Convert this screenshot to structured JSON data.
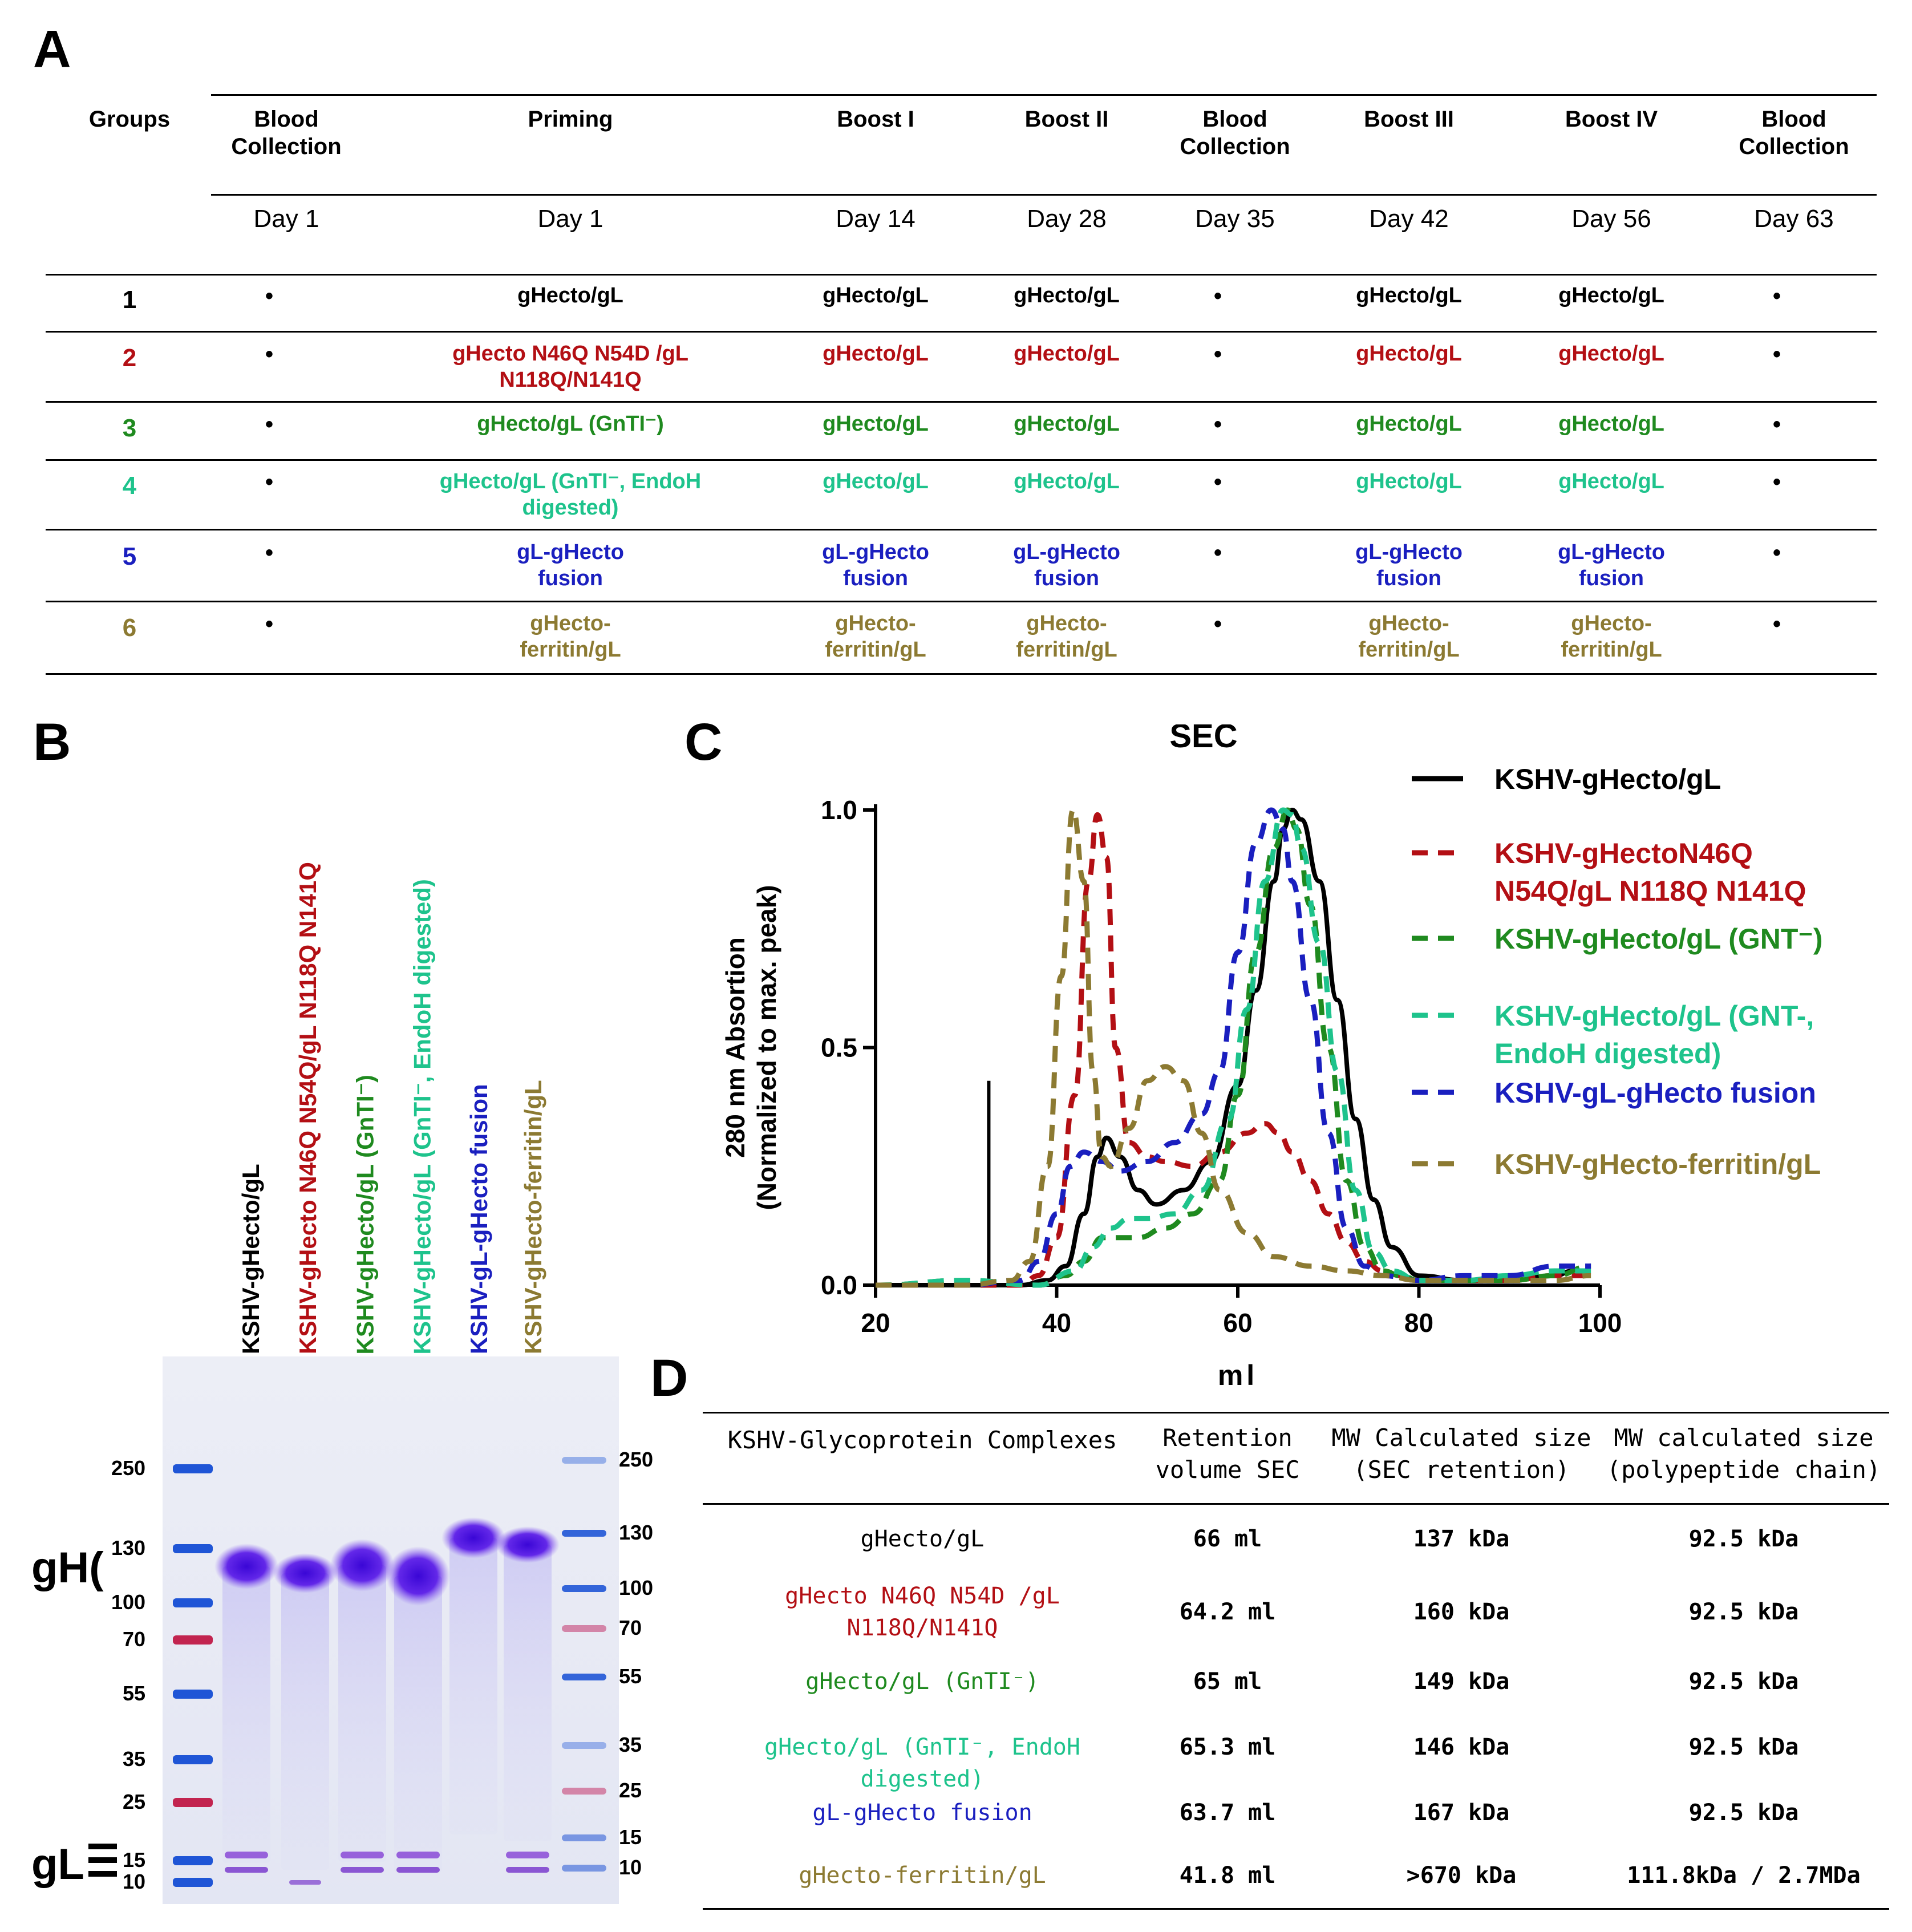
{
  "panel_letters": {
    "a": "A",
    "b": "B",
    "c": "C",
    "d": "D"
  },
  "colors": {
    "black": "#000000",
    "red": "#b30f14",
    "green": "#1f8a1f",
    "teal": "#1ec38c",
    "blue": "#1a1fbf",
    "olive": "#8c7a32",
    "gel_purple": "#6a2bd9",
    "ladder_blue": "#1f55d6",
    "ladder_red": "#c2244f"
  },
  "table_a": {
    "headers": [
      "Groups",
      "Blood\nCollection",
      "Priming",
      "Boost I",
      "Boost II",
      "Blood\nCollection",
      "Boost III",
      "Boost IV",
      "Blood\nCollection"
    ],
    "days": [
      "",
      "Day 1",
      "Day 1",
      "Day 14",
      "Day 28",
      "Day 35",
      "Day 42",
      "Day 56",
      "Day 63"
    ],
    "rows": [
      {
        "group": "1",
        "color": "#000000",
        "cells": [
          "•",
          "gHecto/gL",
          "gHecto/gL",
          "gHecto/gL",
          "•",
          "gHecto/gL",
          "gHecto/gL",
          "•"
        ]
      },
      {
        "group": "2",
        "color": "#b30f14",
        "cells": [
          "•",
          "gHecto N46Q N54D /gL\nN118Q/N141Q",
          "gHecto/gL",
          "gHecto/gL",
          "•",
          "gHecto/gL",
          "gHecto/gL",
          "•"
        ]
      },
      {
        "group": "3",
        "color": "#1f8a1f",
        "cells": [
          "•",
          "gHecto/gL (GnTI⁻)",
          "gHecto/gL",
          "gHecto/gL",
          "•",
          "gHecto/gL",
          "gHecto/gL",
          "•"
        ]
      },
      {
        "group": "4",
        "color": "#1ec38c",
        "cells": [
          "•",
          "gHecto/gL (GnTI⁻, EndoH\ndigested)",
          "gHecto/gL",
          "gHecto/gL",
          "•",
          "gHecto/gL",
          "gHecto/gL",
          "•"
        ]
      },
      {
        "group": "5",
        "color": "#1a1fbf",
        "cells": [
          "•",
          "gL-gHecto\nfusion",
          "gL-gHecto\nfusion",
          "gL-gHecto\nfusion",
          "•",
          "gL-gHecto\nfusion",
          "gL-gHecto\nfusion",
          "•"
        ]
      },
      {
        "group": "6",
        "color": "#8c7a32",
        "cells": [
          "•",
          "gHecto-\nferritin/gL",
          "gHecto-\nferritin/gL",
          "gHecto-\nferritin/gL",
          "•",
          "gHecto-\nferritin/gL",
          "gHecto-\nferritin/gL",
          "•"
        ]
      }
    ]
  },
  "gel": {
    "lanes": [
      {
        "label": "KSHV-gHecto/gL",
        "color": "#000000"
      },
      {
        "label": "KSHV-gHecto N46Q N54Q/gL N118Q N141Q",
        "color": "#b30f14"
      },
      {
        "label": "KSHV-gHecto/gL (GnTI⁻)",
        "color": "#1f8a1f"
      },
      {
        "label": "KSHV-gHecto/gL (GnTI⁻, EndoH digested)",
        "color": "#1ec38c"
      },
      {
        "label": "KSHV-gL-gHecto fusion",
        "color": "#1a1fbf"
      },
      {
        "label": "KSHV-gHecto-ferritin/gL",
        "color": "#8c7a32"
      }
    ],
    "left_markers": [
      "250",
      "130",
      "100",
      "70",
      "55",
      "35",
      "25",
      "15",
      "10"
    ],
    "right_markers": [
      "250",
      "130",
      "100",
      "70",
      "55",
      "35",
      "25",
      "15",
      "10"
    ],
    "gh_label": "gH(",
    "gl_label": "gL"
  },
  "chart_data": {
    "type": "line",
    "title": "SEC",
    "xlabel": "ml",
    "ylabel": "280 nm Absortion\n(Normalized to max. peak)",
    "xlim": [
      20,
      100
    ],
    "ylim": [
      0,
      1.0
    ],
    "xticks": [
      "20",
      "40",
      "60",
      "80",
      "100"
    ],
    "yticks": [
      "0.0",
      "0.5",
      "1.0"
    ],
    "marker_line_x": 32.5,
    "marker_line_top": 0.43,
    "series": [
      {
        "name": "KSHV-gHecto/gL",
        "color": "#000000",
        "dash": false,
        "x": [
          20,
          30,
          36,
          39,
          41,
          43,
          44.5,
          45.5,
          47,
          49,
          51,
          54,
          57,
          60,
          62,
          64,
          65,
          66,
          67,
          69,
          71,
          73,
          75,
          77,
          80,
          85,
          90,
          95,
          97
        ],
        "y": [
          0,
          0,
          0,
          0.01,
          0.04,
          0.15,
          0.27,
          0.31,
          0.27,
          0.2,
          0.17,
          0.2,
          0.26,
          0.42,
          0.62,
          0.85,
          0.96,
          1.0,
          0.98,
          0.85,
          0.6,
          0.35,
          0.18,
          0.08,
          0.02,
          0.01,
          0.01,
          0.02,
          0.03
        ]
      },
      {
        "name": "KSHV-gHectoN46Q\nN54Q/gL N118Q N141Q",
        "color": "#b30f14",
        "dash": true,
        "x": [
          20,
          30,
          36,
          38,
          40,
          42,
          43.5,
          44.5,
          45.5,
          46.5,
          48,
          50,
          52,
          55,
          58,
          61,
          63,
          64.5,
          66,
          68,
          70,
          72,
          74,
          76,
          78,
          80,
          85,
          90,
          95,
          99
        ],
        "y": [
          0,
          0,
          0,
          0.02,
          0.1,
          0.4,
          0.85,
          0.99,
          0.9,
          0.5,
          0.3,
          0.27,
          0.26,
          0.25,
          0.28,
          0.32,
          0.34,
          0.32,
          0.28,
          0.22,
          0.15,
          0.09,
          0.05,
          0.03,
          0.02,
          0.01,
          0.01,
          0.01,
          0.02,
          0.02
        ]
      },
      {
        "name": "KSHV-gHecto/gL (GNT⁻)",
        "color": "#1f8a1f",
        "dash": true,
        "x": [
          20,
          30,
          38,
          41,
          43,
          45,
          47,
          49,
          52,
          55,
          58,
          60,
          62,
          64,
          65.5,
          66.5,
          68,
          70,
          72,
          74,
          76,
          78,
          80,
          85,
          90,
          95,
          99
        ],
        "y": [
          0,
          0.01,
          0,
          0.02,
          0.05,
          0.1,
          0.1,
          0.1,
          0.12,
          0.15,
          0.22,
          0.4,
          0.7,
          0.92,
          1.0,
          0.96,
          0.8,
          0.5,
          0.22,
          0.08,
          0.03,
          0.02,
          0.01,
          0.01,
          0.01,
          0.02,
          0.04
        ]
      },
      {
        "name": "KSHV-gHecto/gL (GNT-,\nEndoH digested)",
        "color": "#1ec38c",
        "dash": true,
        "x": [
          20,
          30,
          38,
          42,
          44,
          46,
          48,
          50,
          53,
          56,
          59,
          61,
          63,
          65,
          66,
          67,
          69,
          71,
          73,
          75,
          77,
          80,
          85,
          90,
          95,
          99
        ],
        "y": [
          0,
          0.01,
          0,
          0.03,
          0.08,
          0.12,
          0.14,
          0.14,
          0.15,
          0.2,
          0.35,
          0.58,
          0.85,
          1.0,
          0.99,
          0.92,
          0.72,
          0.45,
          0.2,
          0.07,
          0.03,
          0.01,
          0.01,
          0.02,
          0.03,
          0.03
        ]
      },
      {
        "name": "KSHV-gL-gHecto fusion",
        "color": "#1a1fbf",
        "dash": true,
        "x": [
          20,
          30,
          36,
          38,
          40,
          41.5,
          43,
          45,
          47,
          50,
          53,
          56,
          58,
          60,
          62,
          63.7,
          65,
          66,
          68,
          70,
          72,
          74,
          76,
          80,
          85,
          90,
          95,
          99
        ],
        "y": [
          0,
          0,
          0.01,
          0.05,
          0.15,
          0.25,
          0.28,
          0.26,
          0.24,
          0.26,
          0.3,
          0.36,
          0.45,
          0.7,
          0.93,
          1.0,
          0.96,
          0.85,
          0.6,
          0.32,
          0.12,
          0.04,
          0.02,
          0.01,
          0.02,
          0.02,
          0.04,
          0.04
        ]
      },
      {
        "name": "KSHV-gHecto-ferritin/gL",
        "color": "#8c7a32",
        "dash": true,
        "x": [
          20,
          30,
          35,
          37,
          39,
          40.5,
          41.8,
          43,
          44,
          45,
          46,
          48,
          50,
          52,
          54,
          56,
          58,
          61,
          64,
          68,
          72,
          76,
          80,
          85,
          90,
          95,
          99
        ],
        "y": [
          0,
          0,
          0.01,
          0.05,
          0.25,
          0.65,
          1.0,
          0.85,
          0.45,
          0.27,
          0.25,
          0.33,
          0.43,
          0.46,
          0.43,
          0.32,
          0.2,
          0.11,
          0.06,
          0.04,
          0.03,
          0.02,
          0.01,
          0.01,
          0.01,
          0.01,
          0.02
        ]
      }
    ]
  },
  "table_d": {
    "headers": [
      "KSHV-Glycoprotein Complexes",
      "Retention\nvolume SEC",
      "MW Calculated size\n(SEC retention)",
      "MW calculated size\n(polypeptide chain)"
    ],
    "rows": [
      {
        "name": "gHecto/gL",
        "color": "#000000",
        "retention": "66 ml",
        "mw_sec": "137 kDa",
        "mw_poly": "92.5 kDa"
      },
      {
        "name": "gHecto N46Q N54D /gL\nN118Q/N141Q",
        "color": "#b30f14",
        "retention": "64.2 ml",
        "mw_sec": "160 kDa",
        "mw_poly": "92.5 kDa"
      },
      {
        "name": "gHecto/gL (GnTI⁻)",
        "color": "#1f8a1f",
        "retention": "65 ml",
        "mw_sec": "149 kDa",
        "mw_poly": "92.5 kDa"
      },
      {
        "name": "gHecto/gL (GnTI⁻, EndoH digested)",
        "color": "#1ec38c",
        "retention": "65.3 ml",
        "mw_sec": "146 kDa",
        "mw_poly": "92.5 kDa"
      },
      {
        "name": "gL-gHecto fusion",
        "color": "#1a1fbf",
        "retention": "63.7 ml",
        "mw_sec": "167 kDa",
        "mw_poly": "92.5 kDa"
      },
      {
        "name": "gHecto-ferritin/gL",
        "color": "#8c7a32",
        "retention": "41.8 ml",
        "mw_sec": ">670 kDa",
        "mw_poly": "111.8kDa / 2.7MDa"
      }
    ]
  }
}
